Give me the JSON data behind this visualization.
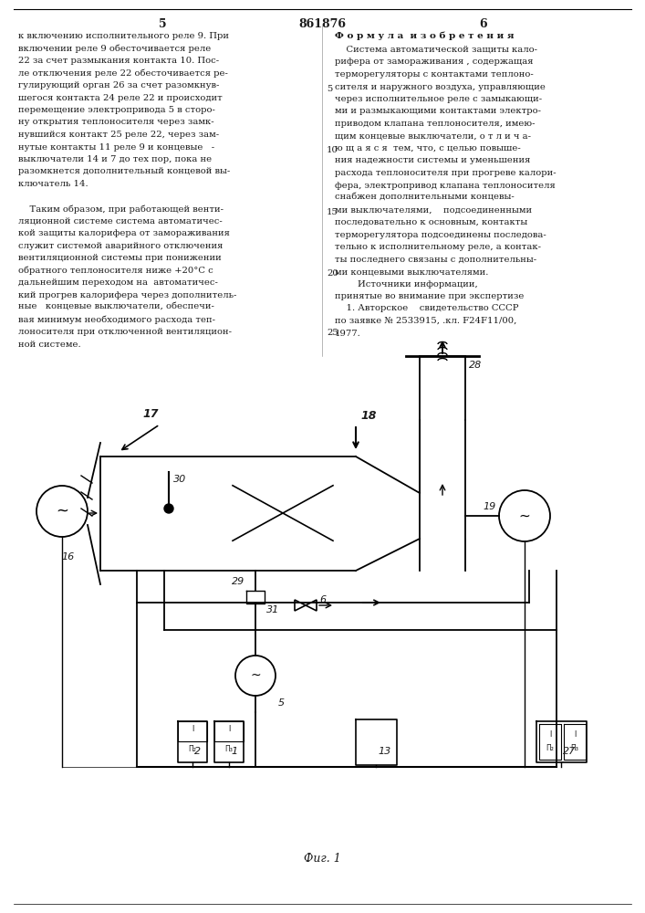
{
  "page_number_left": "5",
  "patent_number": "861876",
  "page_number_right": "6",
  "left_column_lines": [
    "к включению исполнительного реле 9. При",
    "включении реле 9 обесточивается реле",
    "22 за счет размыкания контакта 10. Пос-",
    "ле отключения реле 22 обесточивается ре-",
    "гулирующий орган 26 за счет разомкнув-",
    "шегося контакта 24 реле 22 и происходит",
    "перемещение электропривода 5 в сторо-",
    "ну открытия теплоносителя через замк-",
    "нувшийся контакт 25 реле 22, через зам-",
    "нутые контакты 11 реле 9 и концевые   -",
    "выключатели 14 и 7 до тех пор, пока не",
    "разомкнется дополнительный концевой вы-",
    "ключатель 14.",
    "",
    "    Таким образом, при работающей венти-",
    "ляционной системе система автоматичес-",
    "кой защиты калорифера от замораживания",
    "служит системой аварийного отключения",
    "вентиляционной системы при понижении",
    "обратного теплоносителя ниже +20°С с",
    "дальнейшим переходом на  автоматичес-",
    "кий прогрев калорифера через дополнитель-",
    "ные   концевые выключатели, обеспечи-",
    "вая минимум необходимого расхода теп-",
    "лоносителя при отключенной вентиляцион-",
    "ной системе."
  ],
  "right_col_title": "Ф о р м у л а  и з о б р е т е н и я",
  "right_column_lines": [
    "    Система автоматической защиты кало-",
    "рифера от замораживания , содержащая",
    "терморегуляторы с контактами теплоно-",
    "сителя и наружного воздуха, управляющие",
    "через исполнительное реле с замыкающи-",
    "ми и размыкающими контактами электро-",
    "приводом клапана теплоносителя, имею-",
    "щим концевые выключатели, о т л и ч а-",
    "ю щ а я с я  тем, что, с целью повыше-",
    "ния надежности системы и уменьшения",
    "расхода теплоносителя при прогреве калори-",
    "фера, электропривод клапана теплоносителя",
    "снабжен дополнительными концевы-",
    "ми выключателями,    подсоединенными",
    "последовательно к основным, контакты",
    "терморегулятора подсоединены последова-",
    "тельно к исполнительному реле, а контак-",
    "ты последнего связаны с дополнительны-",
    "ми концевыми выключателями.",
    "        Источники информации,",
    "принятые во внимание при экспертизе",
    "    1. Авторское    свидетельство СССР",
    "по заявке № 2533915, .кл. F24F11/00,",
    "1977."
  ],
  "fig_caption": "Фиг. 1",
  "bg_color": "#ffffff",
  "text_color": "#1a1a1a"
}
